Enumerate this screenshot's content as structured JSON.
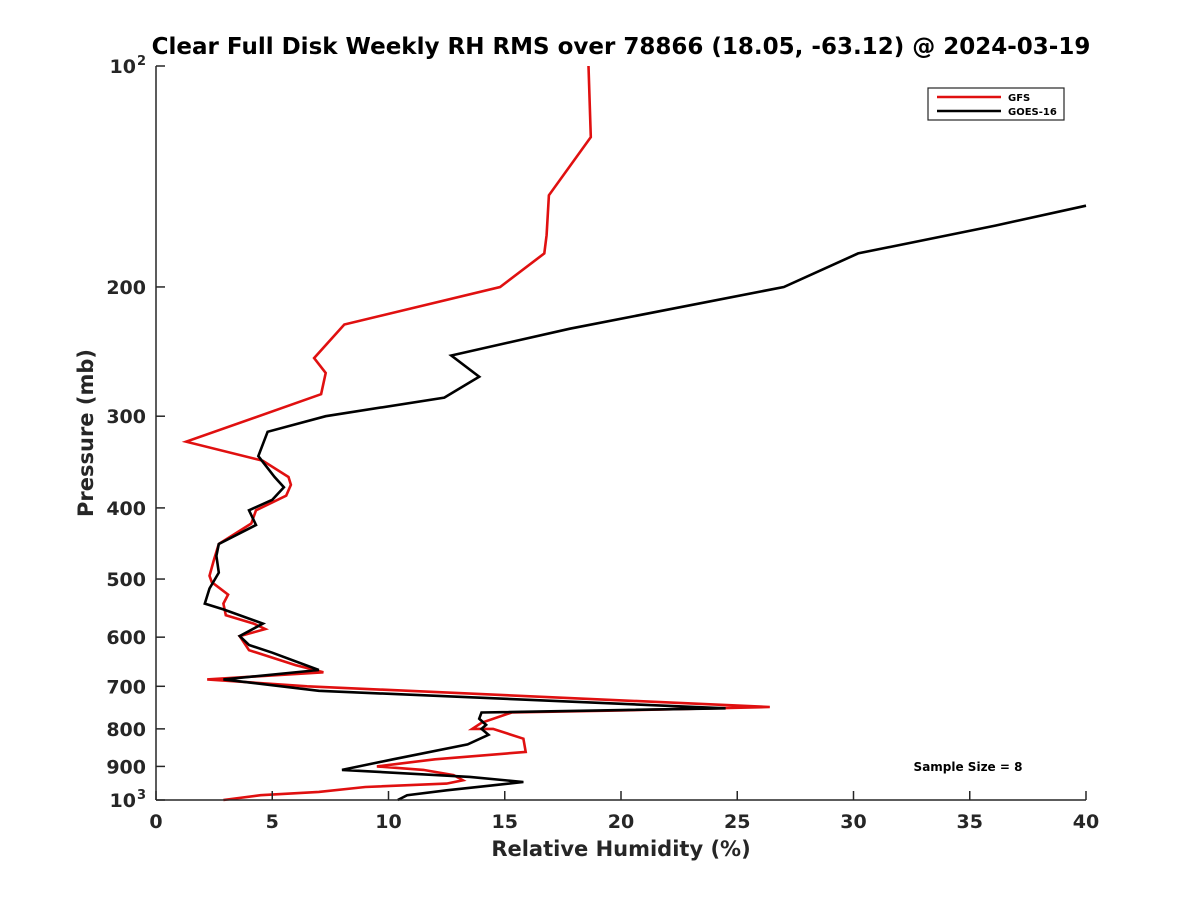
{
  "chart_data": {
    "type": "line",
    "title": "Clear Full Disk Weekly RH RMS over 78866 (18.05, -63.12) @ 2024-03-19",
    "xlabel": "Relative Humidity (%)",
    "ylabel": "Pressure (mb)",
    "xlim": [
      0,
      40
    ],
    "ylim": [
      100,
      1000
    ],
    "yscale": "log",
    "y_reversed": true,
    "x_ticks": [
      "0",
      "5",
      "10",
      "15",
      "20",
      "25",
      "30",
      "35",
      "40"
    ],
    "y_ticks": [
      {
        "value": 100,
        "label": "10",
        "sup": "2"
      },
      {
        "value": 200,
        "label": "200",
        "sup": ""
      },
      {
        "value": 300,
        "label": "300",
        "sup": ""
      },
      {
        "value": 400,
        "label": "400",
        "sup": ""
      },
      {
        "value": 500,
        "label": "500",
        "sup": ""
      },
      {
        "value": 600,
        "label": "600",
        "sup": ""
      },
      {
        "value": 700,
        "label": "700",
        "sup": ""
      },
      {
        "value": 800,
        "label": "800",
        "sup": ""
      },
      {
        "value": 900,
        "label": "900",
        "sup": ""
      },
      {
        "value": 1000,
        "label": "10",
        "sup": "3"
      }
    ],
    "grid": false,
    "legend_position": "top-right",
    "annotation": "Sample Size = 8",
    "series": [
      {
        "name": "GFS",
        "color": "#e01010",
        "points": [
          [
            18.6,
            100
          ],
          [
            18.7,
            125
          ],
          [
            16.9,
            150
          ],
          [
            16.8,
            170
          ],
          [
            16.7,
            180
          ],
          [
            14.8,
            200
          ],
          [
            8.1,
            225
          ],
          [
            6.8,
            250
          ],
          [
            7.3,
            262
          ],
          [
            7.1,
            280
          ],
          [
            1.3,
            325
          ],
          [
            4.6,
            345
          ],
          [
            5.7,
            363
          ],
          [
            5.8,
            372
          ],
          [
            5.6,
            385
          ],
          [
            4.3,
            403
          ],
          [
            4.1,
            420
          ],
          [
            2.7,
            448
          ],
          [
            2.5,
            470
          ],
          [
            2.3,
            495
          ],
          [
            2.4,
            505
          ],
          [
            3.1,
            525
          ],
          [
            2.9,
            540
          ],
          [
            3.0,
            560
          ],
          [
            4.2,
            575
          ],
          [
            4.7,
            585
          ],
          [
            3.6,
            598
          ],
          [
            4.0,
            625
          ],
          [
            6.0,
            655
          ],
          [
            7.2,
            670
          ],
          [
            2.2,
            685
          ],
          [
            6.5,
            700
          ],
          [
            26.4,
            747
          ],
          [
            20.0,
            755
          ],
          [
            15.3,
            760
          ],
          [
            14.0,
            785
          ],
          [
            13.6,
            800
          ],
          [
            14.5,
            800
          ],
          [
            15.8,
            825
          ],
          [
            15.9,
            860
          ],
          [
            12.0,
            880
          ],
          [
            9.5,
            900
          ],
          [
            11.5,
            910
          ],
          [
            12.8,
            925
          ],
          [
            13.2,
            940
          ],
          [
            12.5,
            950
          ],
          [
            9.0,
            960
          ],
          [
            7.0,
            975
          ],
          [
            4.5,
            985
          ],
          [
            2.9,
            1000
          ]
        ]
      },
      {
        "name": "GOES-16",
        "color": "#000000",
        "points": [
          [
            40.0,
            155
          ],
          [
            36.1,
            165
          ],
          [
            30.2,
            180
          ],
          [
            27.0,
            200
          ],
          [
            17.8,
            228
          ],
          [
            12.7,
            248
          ],
          [
            13.9,
            265
          ],
          [
            12.4,
            283
          ],
          [
            7.3,
            300
          ],
          [
            4.8,
            315
          ],
          [
            4.4,
            340
          ],
          [
            5.1,
            363
          ],
          [
            5.5,
            375
          ],
          [
            5.0,
            390
          ],
          [
            4.0,
            403
          ],
          [
            4.3,
            422
          ],
          [
            2.7,
            448
          ],
          [
            2.6,
            465
          ],
          [
            2.7,
            490
          ],
          [
            2.3,
            515
          ],
          [
            2.1,
            540
          ],
          [
            2.9,
            550
          ],
          [
            4.6,
            575
          ],
          [
            3.6,
            598
          ],
          [
            4.0,
            615
          ],
          [
            5.0,
            630
          ],
          [
            7.0,
            665
          ],
          [
            2.9,
            685
          ],
          [
            7.0,
            710
          ],
          [
            24.5,
            750
          ],
          [
            14.0,
            760
          ],
          [
            13.9,
            775
          ],
          [
            14.2,
            790
          ],
          [
            14.0,
            800
          ],
          [
            14.3,
            815
          ],
          [
            13.4,
            840
          ],
          [
            10.2,
            880
          ],
          [
            8.0,
            910
          ],
          [
            13.5,
            930
          ],
          [
            15.8,
            945
          ],
          [
            14.5,
            955
          ],
          [
            12.5,
            970
          ],
          [
            10.8,
            985
          ],
          [
            10.4,
            1000
          ]
        ]
      }
    ]
  }
}
